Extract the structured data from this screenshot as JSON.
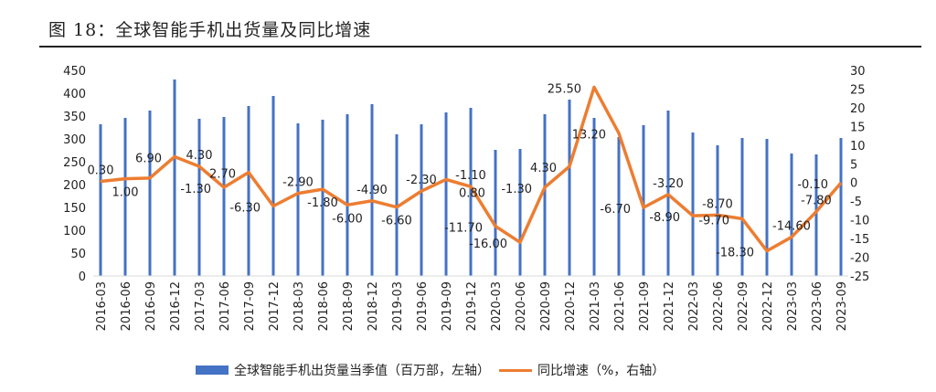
{
  "title": "图 18：全球智能手机出货量及同比增速",
  "chart_data": {
    "type": "bar+line",
    "categories": [
      "2016-03",
      "2016-06",
      "2016-09",
      "2016-12",
      "2017-03",
      "2017-06",
      "2017-09",
      "2017-12",
      "2018-03",
      "2018-06",
      "2018-09",
      "2018-12",
      "2019-03",
      "2019-06",
      "2019-09",
      "2019-12",
      "2020-03",
      "2020-06",
      "2020-09",
      "2020-12",
      "2021-03",
      "2021-06",
      "2021-09",
      "2021-12",
      "2022-03",
      "2022-06",
      "2022-09",
      "2022-12",
      "2023-03",
      "2023-06",
      "2023-09"
    ],
    "series": [
      {
        "name": "全球智能手机出货量当季值（百万部，左轴）",
        "type": "bar",
        "axis": "left",
        "color": "#4472C4",
        "values": [
          332,
          346,
          362,
          430,
          344,
          348,
          372,
          394,
          334,
          342,
          354,
          376,
          310,
          332,
          358,
          368,
          276,
          278,
          354,
          386,
          346,
          304,
          330,
          362,
          314,
          286,
          302,
          300,
          268,
          266,
          302
        ]
      },
      {
        "name": "同比增速（%，右轴）",
        "type": "line",
        "axis": "right",
        "color": "#ED7D31",
        "values": [
          0.3,
          1.0,
          1.2,
          6.9,
          4.3,
          -1.3,
          2.7,
          -6.3,
          -2.9,
          -1.8,
          -6.0,
          -4.9,
          -6.6,
          -2.3,
          0.8,
          -1.1,
          -11.7,
          -16.0,
          -1.3,
          4.3,
          25.5,
          13.2,
          -6.7,
          -3.2,
          -8.9,
          -8.7,
          -9.7,
          -18.3,
          -14.6,
          -7.8,
          -0.1
        ],
        "data_labels": [
          "0.30",
          "1.00",
          "",
          "6.90",
          "4.30",
          "-1.30",
          "2.70",
          "-6.30",
          "-2.90",
          "-1.80",
          "-6.00",
          "-4.90",
          "-6.60",
          "-2.30",
          "0.80",
          "-1.10",
          "-11.70",
          "-16.00",
          "-1.30",
          "4.30",
          "25.50",
          "13.20",
          "-6.70",
          "-3.20",
          "-8.90",
          "-8.70",
          "-9.70",
          "-18.30",
          "-14.60",
          "-7.80",
          "-0.10"
        ]
      }
    ],
    "y_left": {
      "range": [
        0,
        450
      ],
      "ticks": [
        "0",
        "50",
        "100",
        "150",
        "200",
        "250",
        "300",
        "350",
        "400",
        "450"
      ]
    },
    "y_right": {
      "range": [
        -25,
        30
      ],
      "ticks": [
        "-25",
        "-20",
        "-15",
        "-10",
        "-5",
        "0",
        "5",
        "10",
        "15",
        "20",
        "25",
        "30"
      ]
    },
    "grid": false,
    "legend": "bottom"
  }
}
